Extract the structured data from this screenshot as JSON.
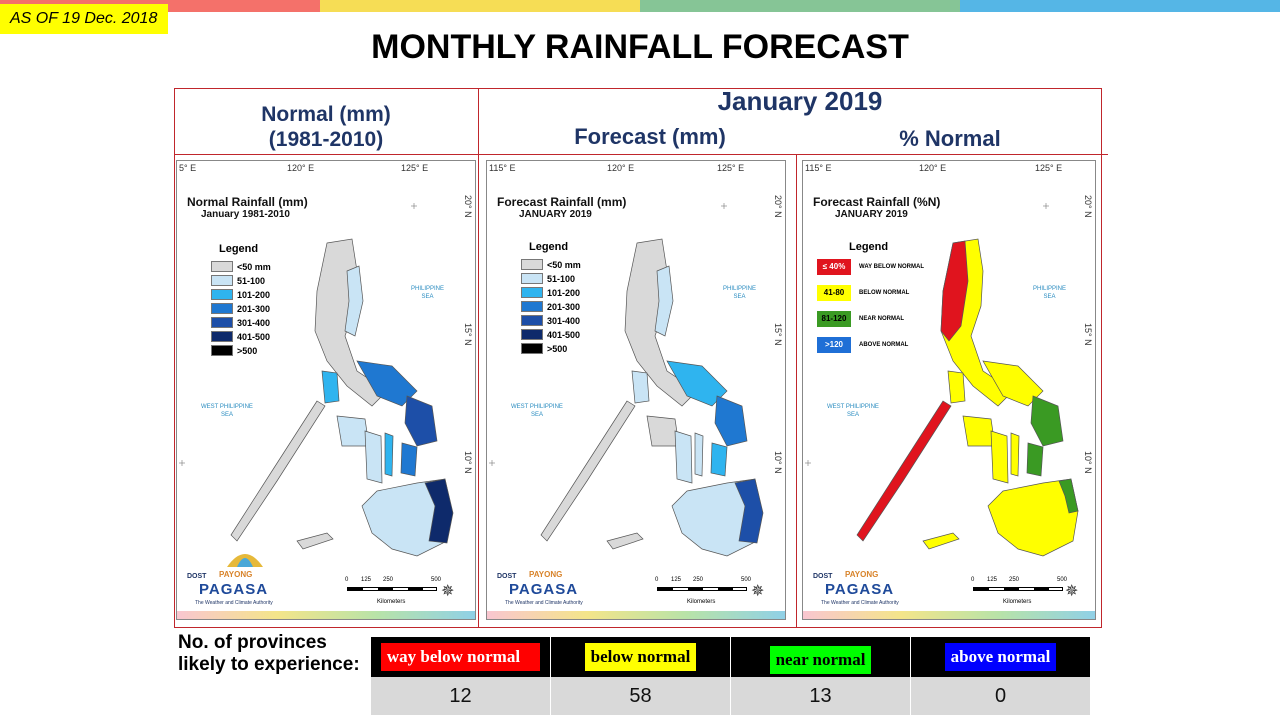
{
  "header": {
    "as_of": "AS OF 19 Dec. 2018",
    "title": "MONTHLY RAINFALL FORECAST",
    "stripe_colors": [
      "#f4716a",
      "#f6dd55",
      "#86c596",
      "#55b6e6"
    ]
  },
  "columns": {
    "normal_line1": "Normal (mm)",
    "normal_line2": "(1981-2010)",
    "month": "January 2019",
    "forecast": "Forecast (mm)",
    "pct_normal": "% Normal"
  },
  "maps": {
    "normal": {
      "title": "Normal Rainfall (mm)",
      "subtitle": "January 1981-2010",
      "lon_labels": [
        "5° E",
        "120° E",
        "125° E"
      ]
    },
    "forecast": {
      "title": "Forecast Rainfall (mm)",
      "subtitle": "JANUARY 2019",
      "lon_labels": [
        "115° E",
        "120° E",
        "125° E"
      ]
    },
    "percent": {
      "title": "Forecast Rainfall (%N)",
      "subtitle": "JANUARY 2019",
      "lon_labels": [
        "115° E",
        "120° E",
        "125° E"
      ]
    },
    "lat_labels": [
      "20° N",
      "15° N",
      "10° N"
    ],
    "legend_title": "Legend",
    "mm_legend": [
      {
        "label": "<50 mm",
        "color": "#d9d9d9"
      },
      {
        "label": "51-100",
        "color": "#c9e4f5"
      },
      {
        "label": "101-200",
        "color": "#2fb4ef"
      },
      {
        "label": "201-300",
        "color": "#1f78d1"
      },
      {
        "label": "301-400",
        "color": "#1d4fa8"
      },
      {
        "label": "401-500",
        "color": "#0e2a6b"
      },
      {
        "label": ">500",
        "color": "#000000"
      }
    ],
    "pct_legend": [
      {
        "box": "≤ 40%",
        "label": "WAY BELOW NORMAL",
        "color": "#e0141e",
        "text_color": "#ffffff"
      },
      {
        "box": "41-80",
        "label": "BELOW NORMAL",
        "color": "#ffff00",
        "text_color": "#000000"
      },
      {
        "box": "81-120",
        "label": "NEAR NORMAL",
        "color": "#3a9a23",
        "text_color": "#000000"
      },
      {
        "box": ">120",
        "label": "ABOVE NORMAL",
        "color": "#1f6fd6",
        "text_color": "#ffffff"
      }
    ],
    "philippine_sea_1": "PHILIPPINE",
    "philippine_sea_2": "SEA",
    "west_sea_1": "WEST PHILIPPINE",
    "west_sea_2": "SEA",
    "logo": {
      "dost": "DOST",
      "payong": "PAYONG",
      "pagasa": "PAGASA",
      "authority": "The Weather and Climate Authority"
    },
    "scale_ticks": [
      "0",
      "125",
      "250",
      "500"
    ],
    "kilometers": "Kilometers"
  },
  "provinces": {
    "label": "No. of provinces likely  to experience:",
    "categories": [
      {
        "name": "way below normal",
        "count": "12",
        "bg": "#ff0000",
        "fg": "#ffffff"
      },
      {
        "name": "below normal",
        "count": "58",
        "bg": "#ffff00",
        "fg": "#000000"
      },
      {
        "name": "near normal",
        "count": "13",
        "bg": "#00ff00",
        "fg": "#000000"
      },
      {
        "name": "above normal",
        "count": "0",
        "bg": "#0000ff",
        "fg": "#ffffff"
      }
    ]
  }
}
